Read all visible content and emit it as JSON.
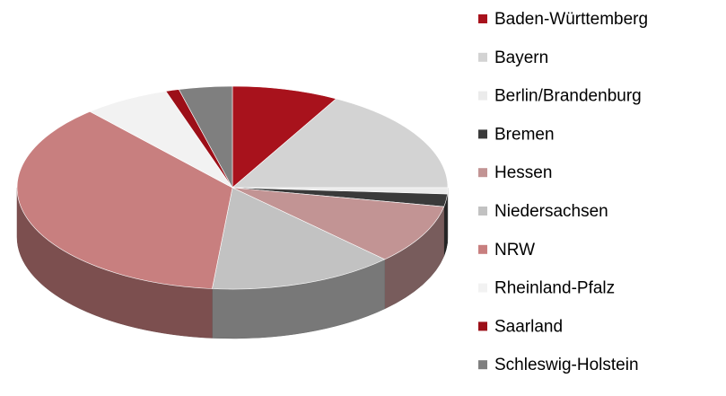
{
  "chart_data": {
    "type": "pie3d",
    "categories": [
      "Baden-Württemberg",
      "Bayern",
      "Berlin/Brandenburg",
      "Bremen",
      "Hessen",
      "Niedersachsen",
      "NRW",
      "Rheinland-Pfalz",
      "Saarland",
      "Schleswig-Holstein"
    ],
    "values": [
      8,
      17,
      1,
      2,
      9.5,
      14,
      37,
      6.5,
      1,
      4
    ],
    "colors": [
      "#a8121c",
      "#d3d3d3",
      "#ebebeb",
      "#3a3a3a",
      "#c29494",
      "#c2c2c2",
      "#c87f7f",
      "#f2f2f2",
      "#9c0f18",
      "#7f7f7f"
    ],
    "legend": "right"
  }
}
